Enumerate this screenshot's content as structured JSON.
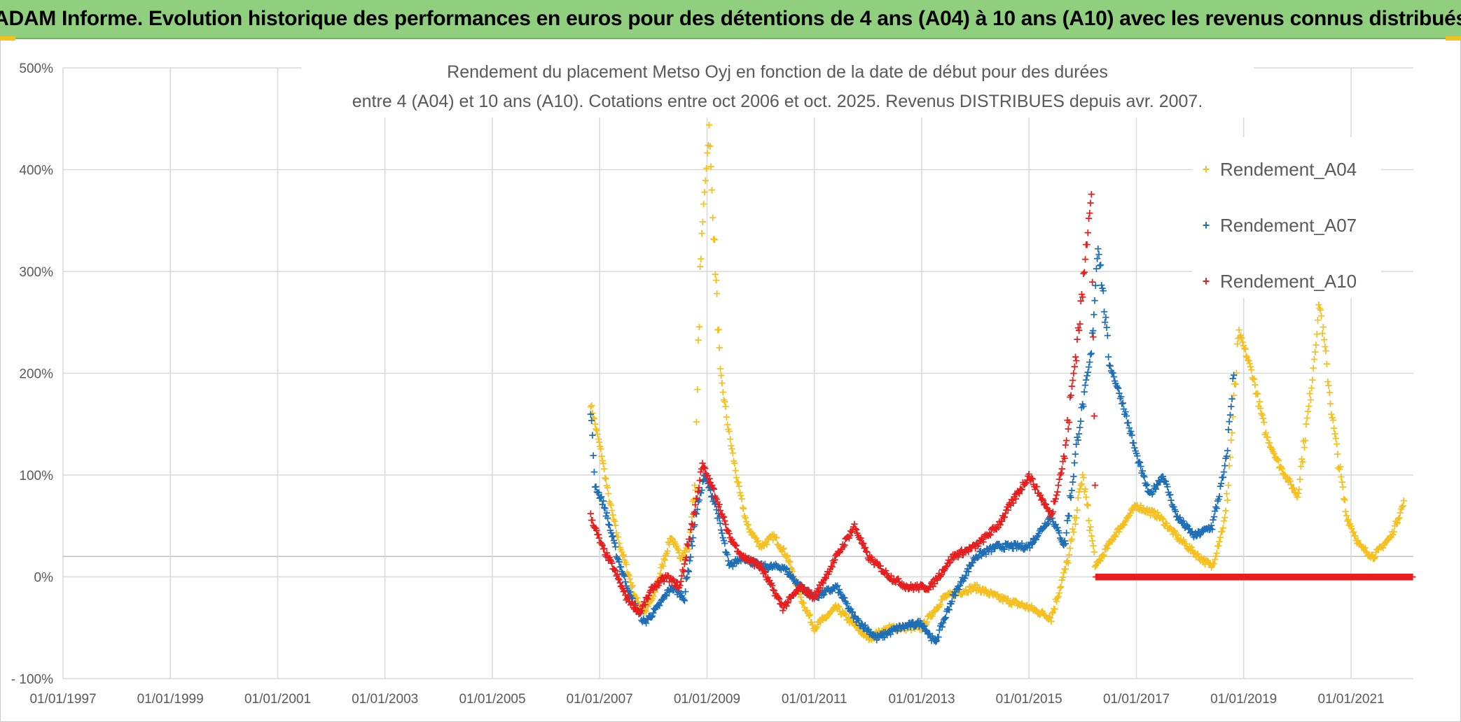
{
  "header": {
    "title": "ADAM Informe. Evolution historique des performances en euros pour des détentions de 4 ans (A04) à 10 ans (A10) avec les revenus connus distribués"
  },
  "chart_data": {
    "type": "scatter",
    "title_line1": "Rendement du placement Metso Oyj en fonction de la date de début pour des durées",
    "title_line2": "entre 4 (A04) et 10 ans (A10). Cotations entre oct 2006 et oct. 2025. Revenus DISTRIBUES depuis avr. 2007.",
    "xlabel": "",
    "ylabel": "",
    "x_ticks": [
      "01/01/1997",
      "01/01/1999",
      "01/01/2001",
      "01/01/2003",
      "01/01/2005",
      "01/01/2007",
      "01/01/2009",
      "01/01/2011",
      "01/01/2013",
      "01/01/2015",
      "01/01/2017",
      "01/01/2019",
      "01/01/2021"
    ],
    "y_ticks": [
      "500%",
      "400%",
      "300%",
      "200%",
      "100%",
      "0%",
      "- 100%"
    ],
    "ylim": [
      -100,
      500
    ],
    "xlim": [
      "1997-01-01",
      "2022-03-01"
    ],
    "grid": true,
    "legend_position": "top-right",
    "series": [
      {
        "name": "Rendement_A04",
        "color": "#f5c021",
        "points": [
          [
            "2006-11-01",
            170
          ],
          [
            "2006-12-01",
            150
          ],
          [
            "2007-01-15",
            120
          ],
          [
            "2007-03-01",
            80
          ],
          [
            "2007-05-01",
            40
          ],
          [
            "2007-07-01",
            10
          ],
          [
            "2007-09-01",
            -20
          ],
          [
            "2007-11-01",
            -35
          ],
          [
            "2008-01-01",
            -20
          ],
          [
            "2008-03-01",
            10
          ],
          [
            "2008-05-01",
            40
          ],
          [
            "2008-07-01",
            20
          ],
          [
            "2008-09-01",
            30
          ],
          [
            "2008-10-15",
            100
          ],
          [
            "2008-11-15",
            300
          ],
          [
            "2008-12-15",
            380
          ],
          [
            "2009-01-15",
            440
          ],
          [
            "2009-02-15",
            340
          ],
          [
            "2009-04-01",
            200
          ],
          [
            "2009-06-01",
            140
          ],
          [
            "2009-08-01",
            90
          ],
          [
            "2009-10-01",
            50
          ],
          [
            "2010-01-01",
            30
          ],
          [
            "2010-04-01",
            40
          ],
          [
            "2010-07-01",
            20
          ],
          [
            "2010-10-01",
            -20
          ],
          [
            "2011-01-01",
            -50
          ],
          [
            "2011-06-01",
            -30
          ],
          [
            "2012-01-01",
            -60
          ],
          [
            "2012-06-01",
            -50
          ],
          [
            "2013-01-01",
            -50
          ],
          [
            "2013-06-01",
            -20
          ],
          [
            "2014-01-01",
            -10
          ],
          [
            "2014-06-01",
            -20
          ],
          [
            "2015-01-01",
            -30
          ],
          [
            "2015-06-01",
            -40
          ],
          [
            "2015-10-01",
            20
          ],
          [
            "2016-01-01",
            100
          ],
          [
            "2016-04-01",
            10
          ],
          [
            "2016-08-01",
            40
          ],
          [
            "2017-01-01",
            70
          ],
          [
            "2017-06-01",
            60
          ],
          [
            "2017-10-01",
            40
          ],
          [
            "2018-03-01",
            20
          ],
          [
            "2018-06-01",
            10
          ],
          [
            "2018-09-01",
            60
          ],
          [
            "2018-12-01",
            240
          ],
          [
            "2019-03-01",
            200
          ],
          [
            "2019-06-01",
            140
          ],
          [
            "2019-09-01",
            110
          ],
          [
            "2020-01-01",
            80
          ],
          [
            "2020-04-01",
            180
          ],
          [
            "2020-06-01",
            270
          ],
          [
            "2020-09-01",
            150
          ],
          [
            "2020-12-01",
            60
          ],
          [
            "2021-03-01",
            30
          ],
          [
            "2021-06-01",
            20
          ],
          [
            "2021-10-01",
            40
          ],
          [
            "2022-01-01",
            75
          ]
        ]
      },
      {
        "name": "Rendement_A07",
        "color": "#1f6fb6",
        "points": [
          [
            "2006-11-01",
            165
          ],
          [
            "2006-12-01",
            90
          ],
          [
            "2007-02-01",
            70
          ],
          [
            "2007-05-01",
            20
          ],
          [
            "2007-08-01",
            -20
          ],
          [
            "2007-11-01",
            -45
          ],
          [
            "2008-02-01",
            -30
          ],
          [
            "2008-05-01",
            -10
          ],
          [
            "2008-08-01",
            -20
          ],
          [
            "2008-10-15",
            60
          ],
          [
            "2008-12-15",
            100
          ],
          [
            "2009-03-01",
            70
          ],
          [
            "2009-06-01",
            10
          ],
          [
            "2009-09-01",
            20
          ],
          [
            "2010-01-01",
            10
          ],
          [
            "2010-06-01",
            10
          ],
          [
            "2010-10-01",
            -10
          ],
          [
            "2011-01-01",
            -20
          ],
          [
            "2011-06-01",
            -10
          ],
          [
            "2011-10-01",
            -40
          ],
          [
            "2012-03-01",
            -60
          ],
          [
            "2012-08-01",
            -50
          ],
          [
            "2013-01-01",
            -45
          ],
          [
            "2013-04-01",
            -65
          ],
          [
            "2013-08-01",
            -20
          ],
          [
            "2014-01-01",
            20
          ],
          [
            "2014-06-01",
            30
          ],
          [
            "2015-01-01",
            30
          ],
          [
            "2015-06-01",
            60
          ],
          [
            "2015-09-01",
            30
          ],
          [
            "2015-12-01",
            140
          ],
          [
            "2016-03-01",
            220
          ],
          [
            "2016-04-15",
            330
          ],
          [
            "2016-07-01",
            210
          ],
          [
            "2016-10-01",
            170
          ],
          [
            "2017-01-01",
            120
          ],
          [
            "2017-04-01",
            80
          ],
          [
            "2017-07-01",
            100
          ],
          [
            "2017-10-01",
            60
          ],
          [
            "2018-02-01",
            40
          ],
          [
            "2018-06-01",
            50
          ],
          [
            "2018-09-01",
            110
          ],
          [
            "2018-11-01",
            210
          ]
        ]
      },
      {
        "name": "Rendement_A10",
        "color": "#e81e1e",
        "points": [
          [
            "2006-11-01",
            60
          ],
          [
            "2007-01-15",
            30
          ],
          [
            "2007-04-01",
            10
          ],
          [
            "2007-07-01",
            -20
          ],
          [
            "2007-10-01",
            -35
          ],
          [
            "2008-01-01",
            -10
          ],
          [
            "2008-04-01",
            0
          ],
          [
            "2008-07-01",
            -10
          ],
          [
            "2008-10-01",
            60
          ],
          [
            "2008-12-01",
            110
          ],
          [
            "2009-03-01",
            80
          ],
          [
            "2009-06-01",
            40
          ],
          [
            "2009-09-01",
            20
          ],
          [
            "2010-01-01",
            10
          ],
          [
            "2010-06-01",
            -30
          ],
          [
            "2010-10-01",
            -10
          ],
          [
            "2011-01-01",
            -20
          ],
          [
            "2011-06-01",
            20
          ],
          [
            "2011-10-01",
            50
          ],
          [
            "2012-01-01",
            20
          ],
          [
            "2012-06-01",
            0
          ],
          [
            "2012-10-01",
            -10
          ],
          [
            "2013-03-01",
            -10
          ],
          [
            "2013-08-01",
            20
          ],
          [
            "2014-01-01",
            30
          ],
          [
            "2014-06-01",
            50
          ],
          [
            "2015-01-01",
            100
          ],
          [
            "2015-06-01",
            60
          ],
          [
            "2015-09-01",
            120
          ],
          [
            "2016-01-01",
            280
          ],
          [
            "2016-03-01",
            385
          ],
          [
            "2016-04-01",
            0
          ],
          [
            "2017-01-01",
            0
          ],
          [
            "2018-01-01",
            0
          ],
          [
            "2019-01-01",
            0
          ],
          [
            "2020-01-01",
            0
          ],
          [
            "2021-01-01",
            0
          ],
          [
            "2022-03-01",
            0
          ]
        ]
      }
    ]
  }
}
